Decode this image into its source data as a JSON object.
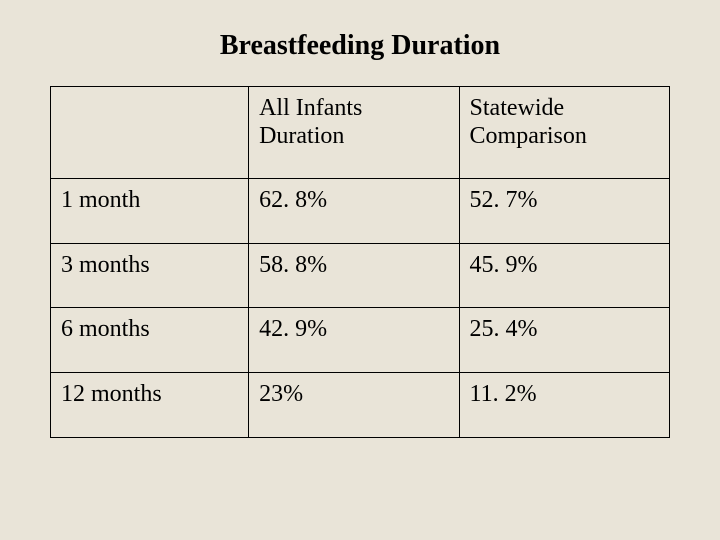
{
  "title": "Breastfeeding Duration",
  "table": {
    "columns": [
      "",
      "All Infants Duration",
      "Statewide Comparison"
    ],
    "rows": [
      [
        "1 month",
        "62. 8%",
        "52. 7%"
      ],
      [
        "3 months",
        "58. 8%",
        "45. 9%"
      ],
      [
        "6 months",
        "42. 9%",
        "25. 4%"
      ],
      [
        "12 months",
        "23%",
        "11. 2%"
      ]
    ],
    "border_color": "#000000",
    "background_color": "#e9e4d8",
    "title_fontsize_pt": 21,
    "cell_fontsize_pt": 18,
    "font_family": "Times New Roman"
  }
}
